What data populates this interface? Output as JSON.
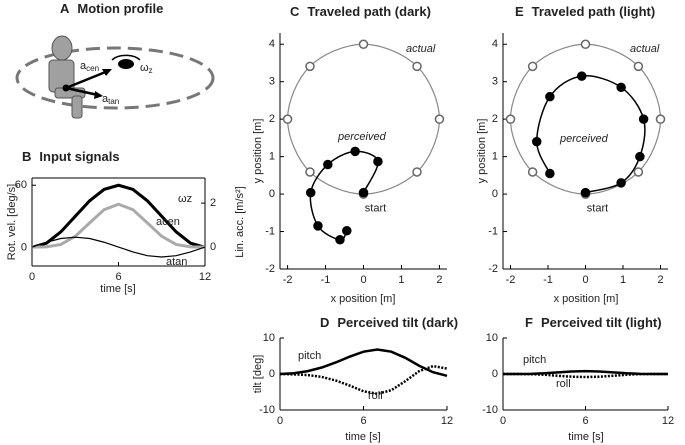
{
  "diagram": {
    "panel": "A",
    "title": "Motion profile",
    "labels": [
      {
        "symbol": "a",
        "subscript": "cen"
      },
      {
        "symbol": "ω",
        "subscript": "z"
      },
      {
        "symbol": "a",
        "subscript": "tan"
      }
    ]
  },
  "chart_data": [
    {
      "type": "line",
      "panel": "B",
      "title": "Input signals",
      "x": [
        0,
        1,
        2,
        3,
        4,
        5,
        6,
        7,
        8,
        9,
        10,
        11,
        12
      ],
      "xlim": [
        0,
        12
      ],
      "xticks": [
        0,
        6,
        12
      ],
      "xlabel": "time [s]",
      "ylabel": "Rot. vel. [deg/s]",
      "ylim": [
        -18,
        67
      ],
      "yticks": [
        0,
        60
      ],
      "y2label": "Lin. acc. [m/s²]",
      "y2lim": [
        -0.86,
        3.14
      ],
      "y2ticks": [
        0,
        2
      ],
      "series": [
        {
          "name": "ωz",
          "color": "#000000",
          "values": [
            0,
            4,
            15,
            30,
            45,
            56,
            60,
            56,
            45,
            30,
            15,
            4,
            0
          ]
        },
        {
          "name": "acen",
          "color": "#aaaaaa",
          "axis": "y2",
          "values": [
            0,
            0.01,
            0.12,
            0.49,
            1.1,
            1.7,
            1.95,
            1.7,
            1.1,
            0.49,
            0.12,
            0.01,
            0
          ]
        },
        {
          "name": "atan",
          "color": "#000000",
          "axis": "y2",
          "values": [
            0,
            0.22,
            0.39,
            0.45,
            0.39,
            0.22,
            0,
            -0.22,
            -0.39,
            -0.45,
            -0.39,
            -0.22,
            0
          ]
        }
      ]
    },
    {
      "type": "scatter",
      "panel": "C",
      "title": "Traveled path (dark)",
      "xlabel": "x position [m]",
      "ylabel": "y position [m]",
      "xlim": [
        -2.2,
        2.2
      ],
      "xticks": [
        -2,
        -1,
        0,
        1,
        2
      ],
      "ylim": [
        -2,
        4.3
      ],
      "yticks": [
        -2,
        -1,
        0,
        1,
        2,
        3,
        4
      ],
      "annotation": "start",
      "series": [
        {
          "name": "actual",
          "color": "#888888",
          "marker": "open",
          "closed": true,
          "x": [
            0,
            1.41,
            2,
            1.41,
            0,
            -1.41,
            -2,
            -1.41
          ],
          "values": [
            0,
            0.59,
            2,
            3.41,
            4,
            3.41,
            2,
            0.59
          ]
        },
        {
          "name": "perceived",
          "color": "#000000",
          "marker": "filled",
          "x": [
            0,
            0.38,
            -0.22,
            -0.94,
            -1.39,
            -1.2,
            -0.62,
            -0.44
          ],
          "values": [
            0.04,
            0.87,
            1.14,
            0.79,
            0.04,
            -0.85,
            -1.22,
            -0.98
          ]
        }
      ]
    },
    {
      "type": "scatter",
      "panel": "E",
      "title": "Traveled path (light)",
      "xlabel": "x position [m]",
      "ylabel": "y position [m]",
      "xlim": [
        -2.2,
        2.2
      ],
      "xticks": [
        -2,
        -1,
        0,
        1,
        2
      ],
      "ylim": [
        -2,
        4.3
      ],
      "yticks": [
        -2,
        -1,
        0,
        1,
        2,
        3,
        4
      ],
      "annotation": "start",
      "series": [
        {
          "name": "actual",
          "color": "#888888",
          "marker": "open",
          "closed": true,
          "x": [
            0,
            1.41,
            2,
            1.41,
            0,
            -1.41,
            -2,
            -1.41
          ],
          "values": [
            0,
            0.59,
            2,
            3.41,
            4,
            3.41,
            2,
            0.59
          ]
        },
        {
          "name": "perceived",
          "color": "#000000",
          "marker": "filled",
          "x": [
            0,
            0.95,
            1.45,
            1.55,
            0.95,
            -0.1,
            -0.95,
            -1.3,
            -0.95
          ],
          "values": [
            0.04,
            0.3,
            1.0,
            2.0,
            2.85,
            3.15,
            2.6,
            1.4,
            0.55
          ]
        }
      ]
    },
    {
      "type": "line",
      "panel": "D",
      "title": "Perceived tilt (dark)",
      "x": [
        0,
        1,
        2,
        3,
        4,
        5,
        6,
        7,
        8,
        9,
        10,
        11,
        12
      ],
      "xlim": [
        0,
        12
      ],
      "xticks": [
        0,
        6,
        12
      ],
      "xlabel": "time [s]",
      "ylabel": "tilt [deg]",
      "ylim": [
        -10,
        10
      ],
      "yticks": [
        -10,
        0,
        10
      ],
      "series": [
        {
          "name": "pitch",
          "color": "#000000",
          "style": "solid",
          "values": [
            0,
            0.2,
            0.8,
            1.8,
            3.2,
            4.8,
            6.2,
            6.8,
            6.2,
            4.5,
            2.3,
            0.5,
            -0.5
          ]
        },
        {
          "name": "roll",
          "color": "#000000",
          "style": "dotted",
          "values": [
            0,
            -0.1,
            -0.3,
            -0.8,
            -1.8,
            -3.2,
            -4.8,
            -5.5,
            -4.5,
            -2,
            0.8,
            2.2,
            1.5
          ]
        }
      ]
    },
    {
      "type": "line",
      "panel": "F",
      "title": "Perceived tilt (light)",
      "x": [
        0,
        1,
        2,
        3,
        4,
        5,
        6,
        7,
        8,
        9,
        10,
        11,
        12
      ],
      "xlim": [
        0,
        12
      ],
      "xticks": [
        0,
        6,
        12
      ],
      "xlabel": "time [s]",
      "ylim": [
        -10,
        10
      ],
      "yticks": [
        -10,
        0,
        10
      ],
      "series": [
        {
          "name": "pitch",
          "color": "#000000",
          "style": "solid",
          "values": [
            0,
            0,
            0.05,
            0.2,
            0.45,
            0.7,
            0.8,
            0.7,
            0.45,
            0.2,
            0.05,
            0,
            0
          ]
        },
        {
          "name": "roll",
          "color": "#000000",
          "style": "dotted",
          "values": [
            0,
            0,
            -0.05,
            -0.2,
            -0.5,
            -0.75,
            -0.85,
            -0.75,
            -0.5,
            -0.2,
            -0.05,
            0,
            0
          ]
        }
      ]
    }
  ]
}
